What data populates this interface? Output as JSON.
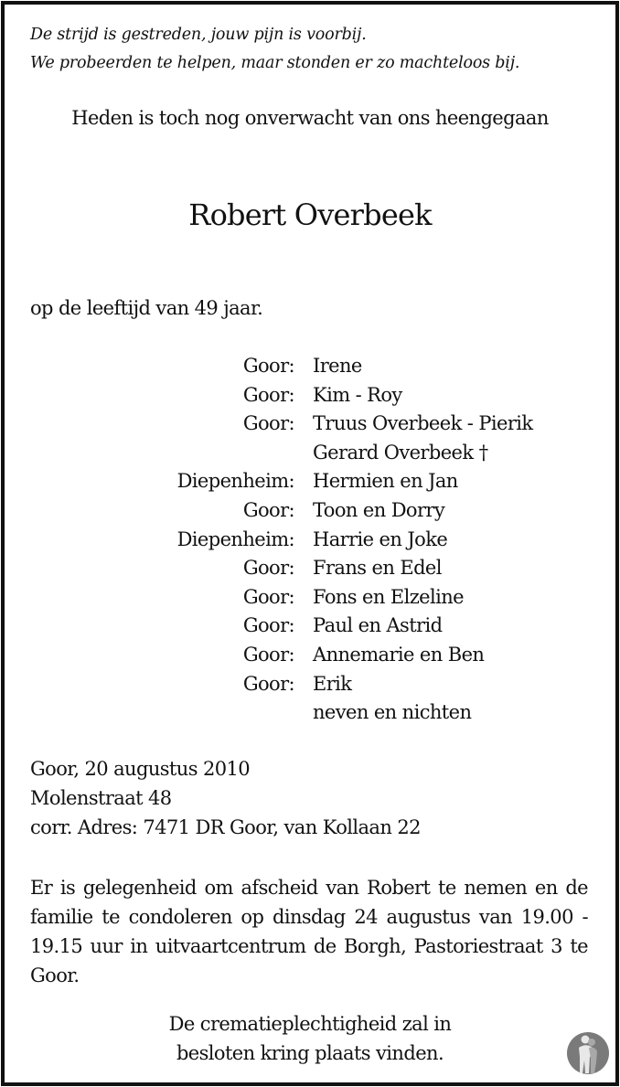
{
  "verse": [
    "De strijd is gestreden, jouw pijn is voorbij.",
    "We probeerden te helpen, maar stonden er zo machteloos bij."
  ],
  "intro": "Heden is toch nog onverwacht van ons heengegaan",
  "deceased_name": "Robert Overbeek",
  "age_line": "op de leeftijd van 49 jaar.",
  "relatives": [
    {
      "place": "Goor:",
      "name": "Irene"
    },
    {
      "place": "Goor:",
      "name": "Kim - Roy"
    },
    {
      "place": "Goor:",
      "name": "Truus Overbeek - Pierik"
    },
    {
      "place": "",
      "name": "Gerard Overbeek †"
    },
    {
      "place": "Diepenheim:",
      "name": "Hermien en Jan"
    },
    {
      "place": "Goor:",
      "name": "Toon en Dorry"
    },
    {
      "place": "Diepenheim:",
      "name": "Harrie en Joke"
    },
    {
      "place": "Goor:",
      "name": "Frans en Edel"
    },
    {
      "place": "Goor:",
      "name": "Fons en Elzeline"
    },
    {
      "place": "Goor:",
      "name": "Paul en Astrid"
    },
    {
      "place": "Goor:",
      "name": "Annemarie en Ben"
    },
    {
      "place": "Goor:",
      "name": "Erik"
    },
    {
      "place": "",
      "name": "neven en nichten"
    }
  ],
  "address": [
    "Goor, 20 augustus 2010",
    "Molenstraat 48",
    "corr. Adres: 7471 DR Goor, van Kollaan 22"
  ],
  "visitation": "Er is gelegenheid om afscheid van Robert te nemen en de familie te condoleren op dinsdag 24 augustus van 19.00 - 19.15 uur in uitvaartcentrum de Borgh, Pastoriestraat 3 te Goor.",
  "closing": [
    "De crematieplechtigheid zal in",
    "besloten kring plaats vinden."
  ],
  "logo_icon": "embracing-figures-logo",
  "colors": {
    "border": "#111111",
    "logo": "#7a7a7a"
  }
}
